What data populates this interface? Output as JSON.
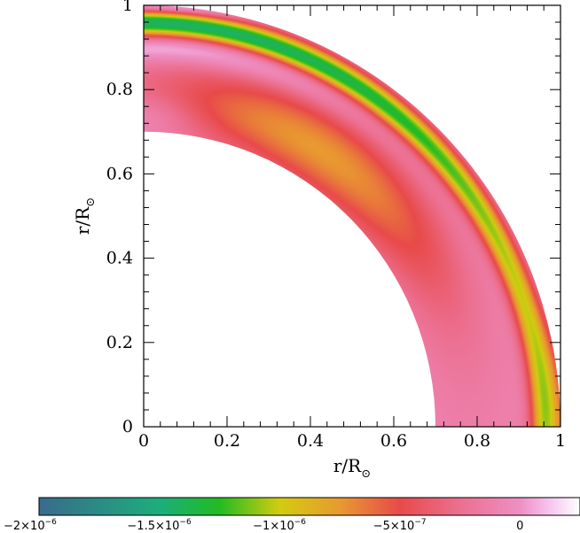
{
  "chart_data": {
    "type": "heatmap",
    "xlabel": "r/R",
    "ylabel": "r/R",
    "label_subscript": "⊙",
    "xlim": [
      0,
      1
    ],
    "ylim": [
      0,
      1
    ],
    "xticks": [
      "0",
      "0.2",
      "0.4",
      "0.6",
      "0.8",
      "1"
    ],
    "yticks": [
      "0",
      "0.2",
      "0.4",
      "0.6",
      "0.8",
      "1"
    ],
    "domain": {
      "inner_radius": 0.7,
      "outer_radius": 1.0,
      "quadrant": "meridional quarter"
    },
    "colorbar": {
      "min": -2e-06,
      "max": 2.5e-07,
      "ticks": [
        {
          "value": -2e-06,
          "mantissa": "−2",
          "exponent": "−6"
        },
        {
          "value": -1.5e-06,
          "mantissa": "−1.5",
          "exponent": "−6"
        },
        {
          "value": -1e-06,
          "mantissa": "−1",
          "exponent": "−6"
        },
        {
          "value": -5e-07,
          "mantissa": "−5",
          "exponent": "−7"
        },
        {
          "value": 0,
          "mantissa": "0",
          "exponent": ""
        }
      ],
      "colormap": [
        {
          "value": -2e-06,
          "color": "#3a6a8c"
        },
        {
          "value": -1.5e-06,
          "color": "#1cae7c"
        },
        {
          "value": -1.25e-06,
          "color": "#22bb22"
        },
        {
          "value": -1e-06,
          "color": "#d2cc10"
        },
        {
          "value": -7.5e-07,
          "color": "#e89a30"
        },
        {
          "value": -5e-07,
          "color": "#e84a4a"
        },
        {
          "value": -2.5e-07,
          "color": "#ec6f90"
        },
        {
          "value": 0,
          "color": "#ee8fc4"
        },
        {
          "value": 1.25e-07,
          "color": "#f6c6ee"
        },
        {
          "value": 2.5e-07,
          "color": "#ffffff"
        }
      ]
    },
    "features": [
      {
        "name": "near-surface shear layer",
        "r": 0.955,
        "theta_deg": [
          10,
          90
        ],
        "peak_value": -1.45e-06
      },
      {
        "name": "mid-latitude interior minimum",
        "r": 0.78,
        "theta_deg": 58,
        "peak_value": -7.5e-07
      },
      {
        "name": "equatorial surface",
        "r": 0.98,
        "theta_deg": 3,
        "peak_value": -9e-07
      },
      {
        "name": "polar region",
        "r": 0.9,
        "theta_deg": 88,
        "peak_value": 2e-07
      }
    ]
  }
}
